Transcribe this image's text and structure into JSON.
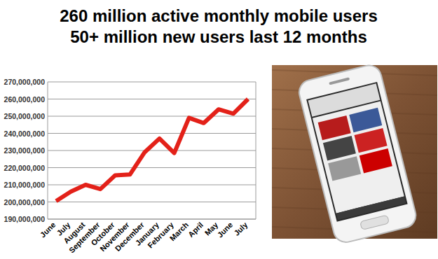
{
  "chart_data": {
    "type": "line",
    "title": "260 million active monthly mobile users",
    "subtitle": "50+ million new users last 12 months",
    "categories": [
      "June",
      "July",
      "August",
      "September",
      "October",
      "November",
      "December",
      "January",
      "February",
      "March",
      "April",
      "May",
      "June",
      "July"
    ],
    "values": [
      200500000,
      206000000,
      210000000,
      207500000,
      215500000,
      216000000,
      229000000,
      237000000,
      228500000,
      249000000,
      246000000,
      254000000,
      251500000,
      260000000
    ],
    "color": "#e32119",
    "ylim": [
      190000000,
      270000000
    ],
    "yticks": [
      {
        "value": 190000000,
        "label": "190,000,000"
      },
      {
        "value": 200000000,
        "label": "200,000,000"
      },
      {
        "value": 210000000,
        "label": "210,000,000"
      },
      {
        "value": 220000000,
        "label": "220,000,000"
      },
      {
        "value": 230000000,
        "label": "230,000,000"
      },
      {
        "value": 240000000,
        "label": "240,000,000"
      },
      {
        "value": 250000000,
        "label": "250,000,000"
      },
      {
        "value": 260000000,
        "label": "260,000,000"
      },
      {
        "value": 270000000,
        "label": "270,000,000"
      }
    ],
    "grid": true
  }
}
